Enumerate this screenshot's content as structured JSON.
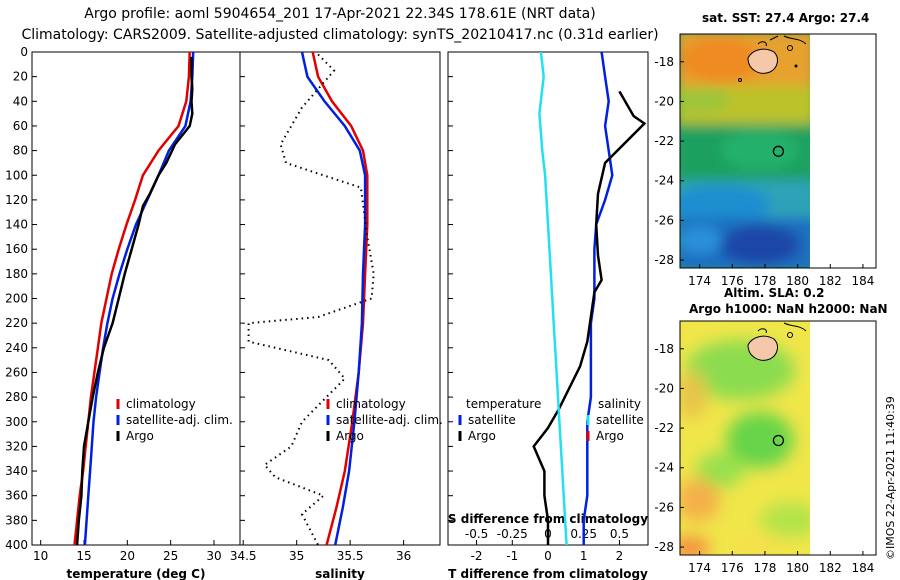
{
  "header": {
    "line1": "Argo profile: aoml 5904654_201 17-Apr-2021 22.34S 178.61E (NRT data)",
    "line2": "Climatology: CARS2009. Satellite-adjusted climatology: synTS_20210417.nc (0.31d earlier)"
  },
  "credit": "©IMOS 22-Apr-2021 11:40:39",
  "colors": {
    "climatology": "#e00000",
    "satellite": "#0020e0",
    "argo": "#000000",
    "sal_satellite": "#22e0f0"
  },
  "chart_data": [
    {
      "type": "line",
      "name": "temperature-profile",
      "xlabel": "temperature (deg C)",
      "ylabel": "depth",
      "xlim": [
        9,
        33
      ],
      "ylim": [
        0,
        400
      ],
      "xticks": [
        10,
        15,
        20,
        25,
        30
      ],
      "yticks": [
        0,
        20,
        40,
        60,
        80,
        100,
        120,
        140,
        160,
        180,
        200,
        220,
        240,
        260,
        280,
        300,
        320,
        340,
        360,
        380,
        400
      ],
      "legend": [
        "climatology",
        "satellite-adj. clim.",
        "Argo"
      ],
      "series": [
        {
          "name": "climatology",
          "style": "solid",
          "points": [
            [
              27.2,
              0
            ],
            [
              27.1,
              20
            ],
            [
              26.8,
              40
            ],
            [
              25.9,
              60
            ],
            [
              23.6,
              80
            ],
            [
              21.8,
              100
            ],
            [
              20.9,
              120
            ],
            [
              19.9,
              140
            ],
            [
              19.0,
              160
            ],
            [
              18.2,
              180
            ],
            [
              17.6,
              200
            ],
            [
              17.0,
              220
            ],
            [
              16.6,
              240
            ],
            [
              16.2,
              260
            ],
            [
              15.8,
              280
            ],
            [
              15.5,
              300
            ],
            [
              15.2,
              320
            ],
            [
              14.9,
              340
            ],
            [
              14.5,
              360
            ],
            [
              14.2,
              380
            ],
            [
              13.9,
              400
            ]
          ]
        },
        {
          "name": "satellite",
          "style": "solid",
          "points": [
            [
              27.6,
              0
            ],
            [
              27.5,
              20
            ],
            [
              27.3,
              40
            ],
            [
              26.7,
              60
            ],
            [
              24.8,
              80
            ],
            [
              23.6,
              100
            ],
            [
              22.3,
              120
            ],
            [
              21.0,
              140
            ],
            [
              20.0,
              160
            ],
            [
              19.1,
              180
            ],
            [
              18.3,
              200
            ],
            [
              17.7,
              220
            ],
            [
              17.2,
              240
            ],
            [
              16.8,
              260
            ],
            [
              16.4,
              280
            ],
            [
              16.1,
              300
            ],
            [
              15.9,
              320
            ],
            [
              15.7,
              340
            ],
            [
              15.5,
              360
            ],
            [
              15.3,
              380
            ],
            [
              15.1,
              400
            ]
          ]
        },
        {
          "name": "argo",
          "style": "solid",
          "points": [
            [
              27.4,
              4
            ],
            [
              27.4,
              20
            ],
            [
              27.5,
              30
            ],
            [
              27.4,
              40
            ],
            [
              27.5,
              50
            ],
            [
              27.2,
              60
            ],
            [
              25.5,
              75
            ],
            [
              24.5,
              90
            ],
            [
              23.6,
              100
            ],
            [
              22.6,
              115
            ],
            [
              21.8,
              125
            ],
            [
              21.3,
              140
            ],
            [
              20.5,
              160
            ],
            [
              19.7,
              180
            ],
            [
              19.0,
              200
            ],
            [
              18.3,
              220
            ],
            [
              17.3,
              240
            ],
            [
              16.6,
              260
            ],
            [
              16.0,
              280
            ],
            [
              15.5,
              300
            ],
            [
              15.0,
              320
            ],
            [
              14.8,
              340
            ],
            [
              14.7,
              360
            ],
            [
              14.4,
              380
            ],
            [
              14.2,
              400
            ]
          ]
        }
      ]
    },
    {
      "type": "line",
      "name": "salinity-profile",
      "xlabel": "salinity",
      "xlim": [
        34.47,
        36.34
      ],
      "ylim": [
        0,
        400
      ],
      "xticks": [
        34.5,
        35,
        35.5,
        36
      ],
      "xtick_labels": [
        "34.5",
        "35",
        "35.5",
        "36"
      ],
      "legend": [
        "climatology",
        "satellite-adj. clim.",
        "Argo"
      ],
      "series": [
        {
          "name": "climatology",
          "style": "solid",
          "points": [
            [
              35.15,
              0
            ],
            [
              35.2,
              20
            ],
            [
              35.33,
              40
            ],
            [
              35.51,
              60
            ],
            [
              35.62,
              80
            ],
            [
              35.66,
              100
            ],
            [
              35.66,
              140
            ],
            [
              35.64,
              180
            ],
            [
              35.62,
              220
            ],
            [
              35.58,
              260
            ],
            [
              35.52,
              300
            ],
            [
              35.45,
              340
            ],
            [
              35.37,
              370
            ],
            [
              35.28,
              400
            ]
          ]
        },
        {
          "name": "satellite",
          "style": "solid",
          "points": [
            [
              35.05,
              0
            ],
            [
              35.1,
              20
            ],
            [
              35.26,
              40
            ],
            [
              35.45,
              60
            ],
            [
              35.59,
              80
            ],
            [
              35.64,
              100
            ],
            [
              35.64,
              140
            ],
            [
              35.62,
              180
            ],
            [
              35.61,
              220
            ],
            [
              35.58,
              260
            ],
            [
              35.54,
              300
            ],
            [
              35.49,
              340
            ],
            [
              35.43,
              370
            ],
            [
              35.36,
              400
            ]
          ]
        },
        {
          "name": "argo",
          "style": "dotted",
          "points": [
            [
              35.2,
              2
            ],
            [
              35.35,
              15
            ],
            [
              35.2,
              30
            ],
            [
              35.05,
              45
            ],
            [
              34.95,
              60
            ],
            [
              34.85,
              75
            ],
            [
              34.9,
              90
            ],
            [
              35.25,
              100
            ],
            [
              35.6,
              110
            ],
            [
              35.66,
              150
            ],
            [
              35.72,
              180
            ],
            [
              35.7,
              200
            ],
            [
              35.2,
              215
            ],
            [
              34.55,
              220
            ],
            [
              34.55,
              235
            ],
            [
              35.3,
              250
            ],
            [
              35.45,
              265
            ],
            [
              35.05,
              300
            ],
            [
              34.95,
              320
            ],
            [
              34.7,
              335
            ],
            [
              34.8,
              345
            ],
            [
              35.25,
              360
            ],
            [
              35.05,
              375
            ],
            [
              35.2,
              400
            ]
          ]
        }
      ]
    },
    {
      "type": "line",
      "name": "difference-profile",
      "xlabel": "T difference from climatology",
      "top_label": "S difference from climatology",
      "xlim": [
        -2.8,
        2.8
      ],
      "xticks": [
        -2,
        -1,
        0,
        1,
        2
      ],
      "s_xlim": [
        -0.7,
        0.7
      ],
      "s_xticks": [
        -0.5,
        -0.25,
        0,
        0.25,
        0.5
      ],
      "s_xtick_labels": [
        "-0.5",
        "-0.25",
        "0",
        "0.25",
        "0.5"
      ],
      "ylim": [
        0,
        400
      ],
      "legend_groups": [
        {
          "title": "temperature",
          "items": [
            "satellite",
            "Argo"
          ]
        },
        {
          "title": "salinity",
          "items": [
            "satellite",
            "Argo"
          ]
        }
      ],
      "series": [
        {
          "name": "T satellite",
          "style": "solid",
          "points": [
            [
              1.5,
              0
            ],
            [
              1.6,
              20
            ],
            [
              1.7,
              40
            ],
            [
              1.6,
              60
            ],
            [
              1.7,
              80
            ],
            [
              1.8,
              100
            ],
            [
              1.6,
              120
            ],
            [
              1.35,
              140
            ],
            [
              1.3,
              160
            ],
            [
              1.3,
              180
            ],
            [
              1.3,
              200
            ],
            [
              1.2,
              220
            ],
            [
              1.2,
              240
            ],
            [
              1.2,
              260
            ],
            [
              1.2,
              280
            ],
            [
              1.1,
              300
            ],
            [
              1.1,
              320
            ],
            [
              1.1,
              340
            ],
            [
              1.1,
              360
            ],
            [
              1.0,
              380
            ],
            [
              1.0,
              400
            ]
          ]
        },
        {
          "name": "T Argo",
          "style": "solid",
          "points": [
            [
              2.0,
              32
            ],
            [
              2.4,
              52
            ],
            [
              2.7,
              58
            ],
            [
              1.6,
              90
            ],
            [
              1.4,
              115
            ],
            [
              1.35,
              140
            ],
            [
              1.4,
              165
            ],
            [
              1.5,
              185
            ],
            [
              1.3,
              195
            ],
            [
              1.1,
              235
            ],
            [
              0.9,
              255
            ],
            [
              0.3,
              290
            ],
            [
              0.0,
              305
            ],
            [
              -0.4,
              320
            ],
            [
              -0.1,
              340
            ],
            [
              -0.1,
              360
            ],
            [
              0.0,
              380
            ],
            [
              0.0,
              400
            ]
          ]
        },
        {
          "name": "S satellite",
          "style": "solid",
          "points": [
            [
              -0.05,
              0
            ],
            [
              -0.03,
              20
            ],
            [
              -0.06,
              50
            ],
            [
              -0.04,
              80
            ],
            [
              -0.02,
              100
            ],
            [
              0.0,
              140
            ],
            [
              0.02,
              180
            ],
            [
              0.04,
              220
            ],
            [
              0.06,
              260
            ],
            [
              0.08,
              300
            ],
            [
              0.1,
              340
            ],
            [
              0.12,
              380
            ],
            [
              0.13,
              400
            ]
          ]
        }
      ]
    }
  ],
  "maps": [
    {
      "title": "sat. SST: 27.4 Argo: 27.4",
      "xticks": [
        "174",
        "176",
        "178",
        "180",
        "182",
        "184"
      ],
      "yticks": [
        "-18",
        "-20",
        "-22",
        "-24",
        "-26",
        "-28"
      ],
      "sub1": "Altim. SLA: 0.2",
      "sub2": "Argo h1000: NaN h2000: NaN",
      "marker": {
        "lon": 178.61,
        "lat": -22.34
      }
    },
    {
      "title": "",
      "xticks": [
        "174",
        "176",
        "178",
        "180",
        "182",
        "184"
      ],
      "yticks": [
        "-18",
        "-20",
        "-22",
        "-24",
        "-26",
        "-28"
      ],
      "marker": {
        "lon": 178.61,
        "lat": -22.34
      }
    }
  ]
}
